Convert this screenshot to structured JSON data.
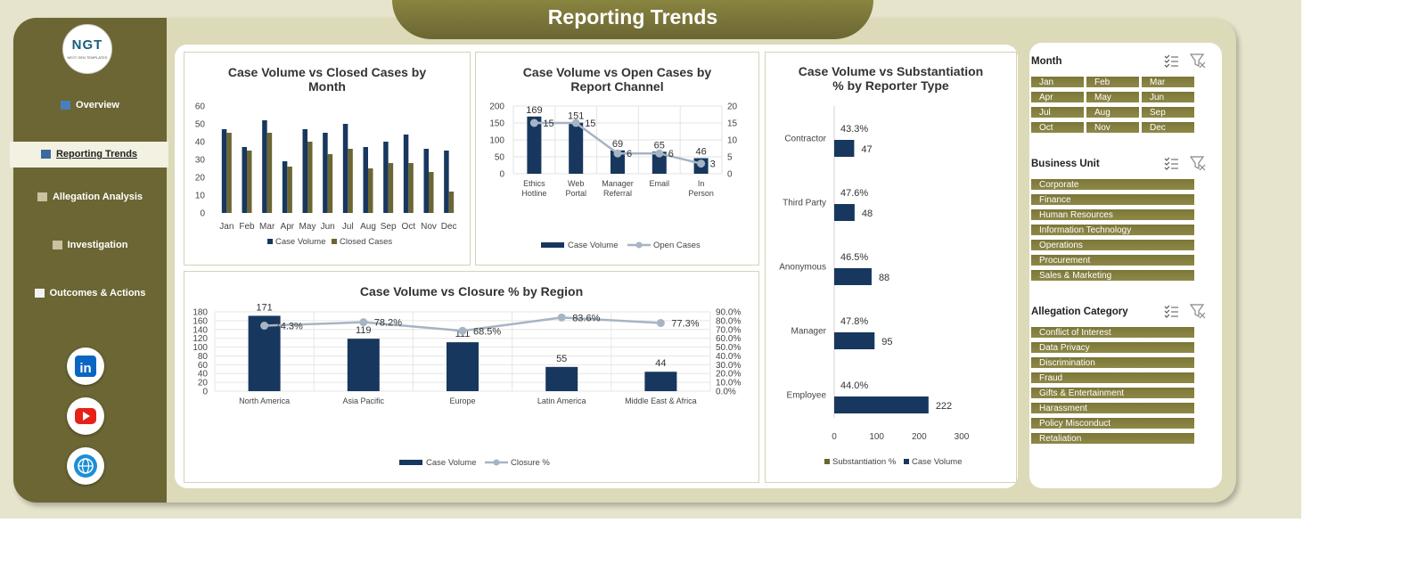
{
  "header": {
    "title": "Reporting Trends"
  },
  "logo": {
    "text": "NGT",
    "tagline": "NEXT GEN TEMPLATES"
  },
  "sidebar": {
    "items": [
      {
        "label": "Overview",
        "icon": "bar-chart-icon",
        "active": false
      },
      {
        "label": "Reporting Trends",
        "icon": "line-chart-icon",
        "active": true
      },
      {
        "label": "Allegation Analysis",
        "icon": "clipboard-icon",
        "active": false
      },
      {
        "label": "Investigation",
        "icon": "gear-icon",
        "active": false
      },
      {
        "label": "Outcomes & Actions",
        "icon": "folder-icon",
        "active": false
      }
    ],
    "social": [
      {
        "icon": "linkedin-icon",
        "label": "in"
      },
      {
        "icon": "youtube-icon"
      },
      {
        "icon": "globe-icon"
      }
    ]
  },
  "colors": {
    "navy": "#17375e",
    "olive": "#6b6633",
    "grey": "#a6b4c4",
    "sidebar": "#6b6633",
    "background": "#e6e4cc"
  },
  "charts": {
    "monthly": {
      "title_line1": "Case Volume vs Closed Cases by",
      "title_line2": "Month",
      "legend": [
        "Case Volume",
        "Closed Cases"
      ]
    },
    "channel": {
      "title_line1": "Case Volume vs Open Cases by",
      "title_line2": "Report Channel",
      "legend": [
        "Case Volume",
        "Open Cases"
      ]
    },
    "region": {
      "title": "Case Volume vs Closure % by Region",
      "legend": [
        "Case Volume",
        "Closure %"
      ]
    },
    "reporter": {
      "title_line1": "Case Volume vs Substantiation",
      "title_line2": "% by Reporter Type",
      "legend": [
        "Substantiation %",
        "Case Volume"
      ]
    }
  },
  "chart_data": [
    {
      "type": "bar",
      "categories": [
        "Jan",
        "Feb",
        "Mar",
        "Apr",
        "May",
        "Jun",
        "Jul",
        "Aug",
        "Sep",
        "Oct",
        "Nov",
        "Dec"
      ],
      "series": [
        {
          "name": "Case Volume",
          "values": [
            47,
            37,
            52,
            29,
            47,
            45,
            50,
            37,
            40,
            44,
            36,
            35
          ]
        },
        {
          "name": "Closed Cases",
          "values": [
            45,
            35,
            45,
            26,
            40,
            33,
            36,
            25,
            28,
            28,
            23,
            12
          ]
        }
      ],
      "ylim": [
        0,
        60
      ],
      "yticks": [
        0,
        10,
        20,
        30,
        40,
        50,
        60
      ]
    },
    {
      "type": "bar",
      "categories": [
        "Ethics Hotline",
        "Web Portal",
        "Manager Referral",
        "Email",
        "In Person"
      ],
      "series": [
        {
          "name": "Case Volume",
          "values": [
            169,
            151,
            69,
            65,
            46
          ]
        },
        {
          "name": "Open Cases",
          "values": [
            15,
            15,
            6,
            6,
            3
          ]
        }
      ],
      "ylim": [
        0,
        200
      ],
      "y2lim": [
        0,
        20
      ],
      "yticks": [
        0,
        50,
        100,
        150,
        200
      ],
      "y2ticks": [
        0,
        5,
        10,
        15,
        20
      ]
    },
    {
      "type": "bar",
      "categories": [
        "North America",
        "Asia Pacific",
        "Europe",
        "Latin America",
        "Middle East & Africa"
      ],
      "series": [
        {
          "name": "Case Volume",
          "values": [
            171,
            119,
            111,
            55,
            44
          ]
        },
        {
          "name": "Closure %",
          "values": [
            74.3,
            78.2,
            68.5,
            83.6,
            77.3
          ],
          "labels": [
            "74.3%",
            "78.2%",
            "68.5%",
            "83.6%",
            "77.3%"
          ]
        }
      ],
      "ylim": [
        0,
        180
      ],
      "y2lim": [
        0,
        90
      ],
      "yticks": [
        0,
        20,
        40,
        60,
        80,
        100,
        120,
        140,
        160,
        180
      ],
      "y2ticks": [
        "0.0%",
        "10.0%",
        "20.0%",
        "30.0%",
        "40.0%",
        "50.0%",
        "60.0%",
        "70.0%",
        "80.0%",
        "90.0%"
      ]
    },
    {
      "type": "bar",
      "categories": [
        "Contractor",
        "Third Party",
        "Anonymous",
        "Manager",
        "Employee"
      ],
      "series": [
        {
          "name": "Case Volume",
          "values": [
            47,
            48,
            88,
            95,
            222
          ]
        },
        {
          "name": "Substantiation %",
          "values": [
            43.3,
            47.6,
            46.5,
            47.8,
            44.0
          ],
          "labels": [
            "43.3%",
            "47.6%",
            "46.5%",
            "47.8%",
            "44.0%"
          ]
        }
      ],
      "xlim": [
        0,
        300
      ],
      "xticks": [
        0,
        100,
        200,
        300
      ]
    }
  ],
  "slicers": [
    {
      "title": "Month",
      "items": [
        "Jan",
        "Feb",
        "Mar",
        "Apr",
        "May",
        "Jun",
        "Jul",
        "Aug",
        "Sep",
        "Oct",
        "Nov",
        "Dec"
      ]
    },
    {
      "title": "Business Unit",
      "items": [
        "Corporate",
        "Finance",
        "Human Resources",
        "Information Technology",
        "Operations",
        "Procurement",
        "Sales & Marketing"
      ]
    },
    {
      "title": "Allegation Category",
      "items": [
        "Conflict of Interest",
        "Data Privacy",
        "Discrimination",
        "Fraud",
        "Gifts & Entertainment",
        "Harassment",
        "Policy Misconduct",
        "Retaliation"
      ]
    }
  ]
}
